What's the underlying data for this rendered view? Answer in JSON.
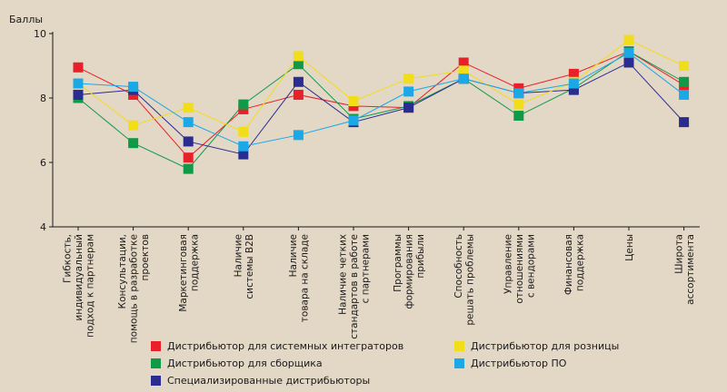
{
  "chart_data": {
    "type": "line",
    "ylabel": "Баллы",
    "ylim": [
      4,
      10
    ],
    "yticks": [
      "4",
      "6",
      "8",
      "10"
    ],
    "categories": [
      [
        "Гибкость,",
        "индивидуальный",
        "подход к партнерам"
      ],
      [
        "Консультации,",
        "помощь в разработке",
        "проектов"
      ],
      [
        "Маркетинговая",
        "поддержка"
      ],
      [
        "Наличие",
        "системы B2B"
      ],
      [
        "Наличие",
        "товара на складе"
      ],
      [
        "Наличие четких",
        "стандартов в работе",
        "с партнерами"
      ],
      [
        "Программы",
        "формирования",
        "прибыли"
      ],
      [
        "Способность",
        "решать проблемы"
      ],
      [
        "Управление",
        "отношениями",
        "с вендорами"
      ],
      [
        "Финансовая",
        "поддержка"
      ],
      [
        "Цены"
      ],
      [
        "Широта",
        "ассортимента"
      ]
    ],
    "series": [
      {
        "name": "Дистрибьютор для системных интеграторов",
        "color": "#e8202a",
        "values": [
          8.95,
          8.1,
          6.15,
          7.65,
          8.1,
          7.75,
          7.7,
          9.1,
          8.3,
          8.75,
          9.45,
          8.4
        ]
      },
      {
        "name": "Дистрибьютор для сборщика",
        "color": "#0f9a48",
        "values": [
          8.0,
          6.6,
          5.8,
          7.8,
          9.05,
          7.35,
          7.75,
          8.6,
          7.45,
          8.3,
          9.45,
          8.5
        ]
      },
      {
        "name": "Специализированные дистрибьюторы",
        "color": "#2a2d8f",
        "values": [
          8.1,
          8.25,
          6.65,
          6.25,
          8.5,
          7.25,
          7.7,
          8.6,
          8.15,
          8.25,
          9.1,
          7.25
        ]
      },
      {
        "name": "Дистрибьютор для розницы",
        "color": "#f2dd1a",
        "values": [
          8.45,
          7.15,
          7.7,
          6.95,
          9.3,
          7.9,
          8.6,
          8.85,
          7.8,
          8.5,
          9.8,
          9.0
        ]
      },
      {
        "name": "Дистрибьютор ПО",
        "color": "#1aa8e6",
        "values": [
          8.45,
          8.35,
          7.25,
          6.5,
          6.85,
          7.3,
          8.2,
          8.6,
          8.15,
          8.45,
          9.4,
          8.1
        ]
      }
    ],
    "legend_left": [
      {
        "label": "Дистрибьютор для системных интеграторов",
        "color": "#e8202a"
      },
      {
        "label": "Дистрибьютор для сборщика",
        "color": "#0f9a48"
      },
      {
        "label": "Специализированные дистрибьюторы",
        "color": "#2a2d8f"
      }
    ],
    "legend_right": [
      {
        "label": "Дистрибьютор для розницы",
        "color": "#f2dd1a"
      },
      {
        "label": "Дистрибьютор ПО",
        "color": "#1aa8e6"
      }
    ]
  }
}
